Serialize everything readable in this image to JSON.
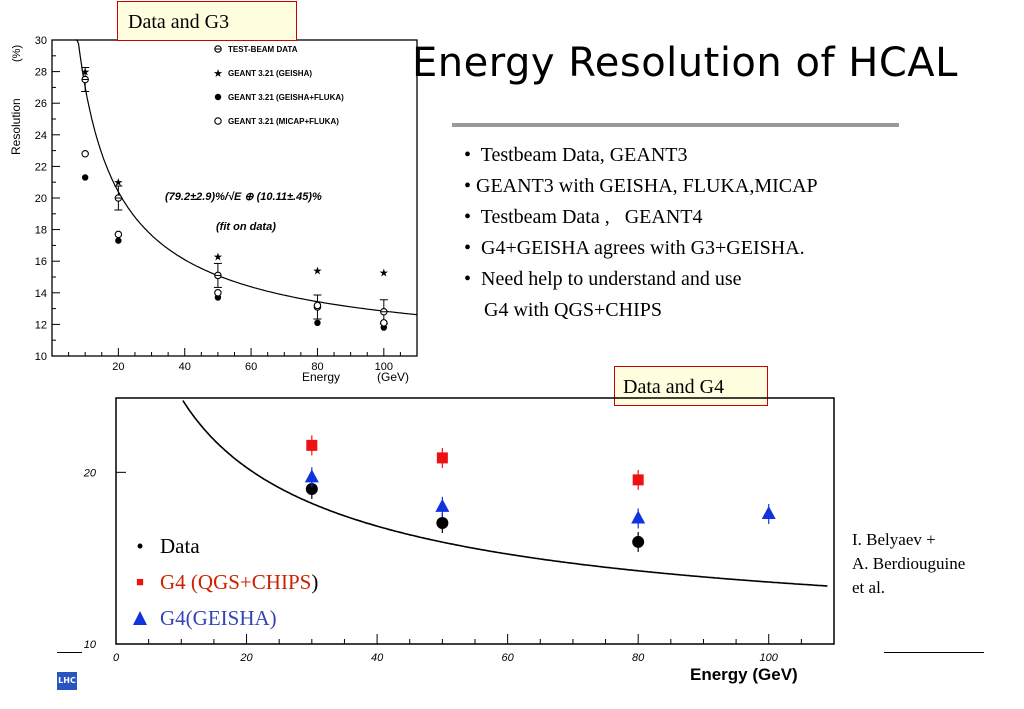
{
  "slide": {
    "title": "Energy Resolution of HCAL",
    "g3_label": "Data and G3",
    "g4_label": "Data and G4",
    "bullets": [
      "•  Testbeam Data, GEANT3",
      "• GEANT3 with GEISHA, FLUKA,MICAP",
      "",
      "•  Testbeam Data ,   GEANT4",
      "•  G4+GEISHA agrees with G3+GEISHA.",
      "•  Need help to understand and use",
      "    G4 with QGS+CHIPS"
    ],
    "credit": [
      "I. Belyaev +",
      "A. Berdiouguine",
      "et al."
    ],
    "logo_text": "LHC"
  },
  "chart_data": [
    {
      "type": "scatter",
      "xlabel": "Energy",
      "xunit": "(GeV)",
      "ylabel": "Resolution",
      "yunit": "(%)",
      "xlim": [
        0,
        110
      ],
      "ylim": [
        10,
        30
      ],
      "xticks": [
        20,
        40,
        60,
        80,
        100
      ],
      "yticks": [
        10,
        12,
        14,
        16,
        18,
        20,
        22,
        24,
        26,
        28,
        30
      ],
      "fit_label": "(79.2±2.9)%/√E ⊕ (10.11±.45)%",
      "fit_note": "(fit on data)",
      "fit": {
        "a": 79.2,
        "b": 10.11,
        "x_from": 7,
        "x_to": 110
      },
      "series": [
        {
          "name": "TEST-BEAM DATA",
          "marker": "cross-circle",
          "x": [
            10,
            20,
            50,
            80,
            100
          ],
          "y": [
            27.5,
            20.0,
            15.1,
            13.1,
            12.8
          ]
        },
        {
          "name": "GEANT 3.21 (GEISHA)",
          "marker": "star",
          "x": [
            10,
            20,
            50,
            80,
            100
          ],
          "y": [
            28.0,
            21.0,
            16.3,
            15.4,
            15.3
          ]
        },
        {
          "name": "GEANT 3.21 (GEISHA+FLUKA)",
          "marker": "filled-circle",
          "x": [
            10,
            20,
            50,
            80,
            100
          ],
          "y": [
            21.3,
            17.3,
            13.7,
            12.1,
            11.8
          ]
        },
        {
          "name": "GEANT 3.21 (MICAP+FLUKA)",
          "marker": "open-circle",
          "x": [
            10,
            20,
            50,
            80,
            100
          ],
          "y": [
            22.8,
            17.7,
            14.0,
            13.2,
            12.1
          ]
        }
      ]
    },
    {
      "type": "scatter",
      "xlabel": "Energy (GeV)",
      "xlim": [
        0,
        110
      ],
      "ylog": true,
      "ylim": [
        10,
        27
      ],
      "xticks": [
        0,
        20,
        40,
        60,
        80,
        100
      ],
      "yticks": [
        10,
        20
      ],
      "fit": {
        "a": 79.2,
        "b": 10.11,
        "x_from": 9,
        "x_to": 109
      },
      "series": [
        {
          "name": "Data",
          "marker": "filled-circle",
          "color": "#000000",
          "x": [
            30,
            50,
            80
          ],
          "y": [
            18.7,
            16.3,
            15.1
          ]
        },
        {
          "name": "G4 (QGS+CHIPS)",
          "marker": "square",
          "color": "#ee1111",
          "x": [
            30,
            50,
            80
          ],
          "y": [
            22.3,
            21.2,
            19.4
          ]
        },
        {
          "name": "G4(GEISHA)",
          "marker": "triangle",
          "color": "#1133dd",
          "x": [
            30,
            50,
            80,
            100
          ],
          "y": [
            19.6,
            17.4,
            16.6,
            16.9
          ]
        }
      ],
      "legend": [
        {
          "bullet": "•",
          "text": "Data",
          "color": "#000000"
        },
        {
          "bullet": "■",
          "text_a": "G4 (",
          "text_b": "QGS+CHIPS",
          "text_c": ")",
          "color": "#cc2200"
        },
        {
          "bullet": "▲",
          "text": "G4(GEISHA)",
          "color": "#3344bb"
        }
      ]
    }
  ]
}
